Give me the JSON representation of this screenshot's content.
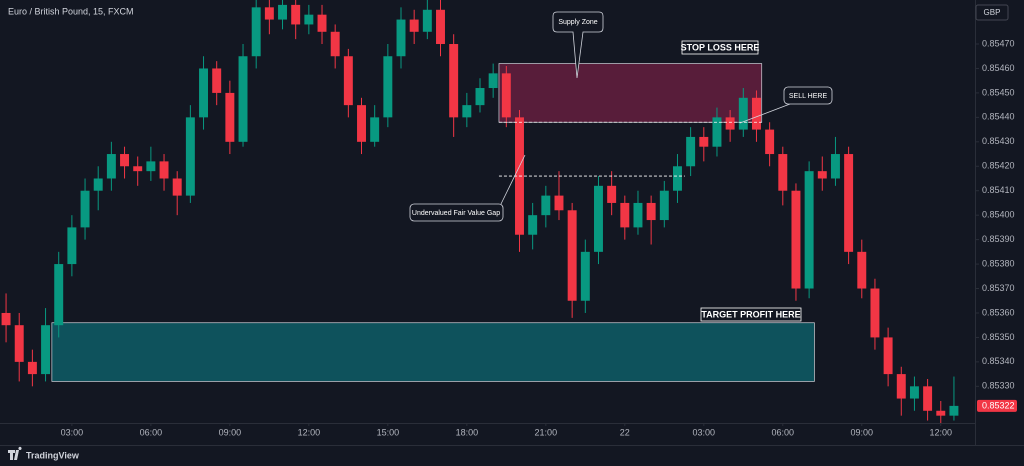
{
  "chart_data": {
    "type": "candlestick",
    "title": "Euro / British Pound, 15, FXCM",
    "currency": "GBP",
    "up_color": "#089981",
    "down_color": "#f23645",
    "x": [
      0.5,
      1,
      1.5,
      2,
      2.5,
      3,
      3.5,
      4,
      4.5,
      5,
      5.5,
      6,
      6.5,
      7,
      7.5,
      8,
      8.5,
      9,
      9.5,
      10,
      10.5,
      11,
      11.5,
      12,
      12.5,
      13,
      13.5,
      14,
      14.5,
      15,
      15.5,
      16,
      16.5,
      17,
      17.5,
      18,
      18.5,
      19,
      19.5,
      20,
      20.5,
      21,
      21.5,
      22,
      22.5,
      23,
      23.5,
      24,
      24.5,
      25,
      25.5,
      26,
      26.5,
      27,
      27.5,
      28,
      28.5,
      29,
      29.5,
      30,
      30.5,
      31,
      31.5,
      32,
      32.5,
      33,
      33.5,
      34,
      34.5,
      35,
      35.5,
      36,
      36.5
    ],
    "open": [
      0.8536,
      0.85355,
      0.8534,
      0.85335,
      0.85355,
      0.8538,
      0.85395,
      0.8541,
      0.85415,
      0.85425,
      0.8542,
      0.85418,
      0.85422,
      0.85415,
      0.85408,
      0.8544,
      0.8546,
      0.8545,
      0.8543,
      0.85465,
      0.85485,
      0.8548,
      0.85486,
      0.85478,
      0.85482,
      0.85475,
      0.85465,
      0.85445,
      0.8543,
      0.8544,
      0.85465,
      0.8548,
      0.85475,
      0.85484,
      0.8547,
      0.8544,
      0.85445,
      0.85452,
      0.85458,
      0.8544,
      0.85392,
      0.854,
      0.85408,
      0.85402,
      0.85365,
      0.85385,
      0.85412,
      0.85405,
      0.85395,
      0.85405,
      0.85398,
      0.8541,
      0.8542,
      0.85432,
      0.85428,
      0.8544,
      0.85435,
      0.85448,
      0.85435,
      0.85425,
      0.8541,
      0.8537,
      0.85418,
      0.85415,
      0.85425,
      0.85385,
      0.8537,
      0.8535,
      0.85335,
      0.85325,
      0.8533,
      0.8532,
      0.85318
    ],
    "high": [
      0.85368,
      0.8536,
      0.85345,
      0.85362,
      0.85385,
      0.854,
      0.85415,
      0.8542,
      0.8543,
      0.85428,
      0.85424,
      0.85428,
      0.85425,
      0.85418,
      0.85445,
      0.85465,
      0.85463,
      0.85455,
      0.8547,
      0.85488,
      0.85488,
      0.85488,
      0.85488,
      0.85486,
      0.85486,
      0.85478,
      0.85468,
      0.85448,
      0.85445,
      0.8547,
      0.85485,
      0.85484,
      0.85488,
      0.85488,
      0.85474,
      0.8545,
      0.85456,
      0.85462,
      0.85461,
      0.85443,
      0.85405,
      0.85412,
      0.85418,
      0.85405,
      0.8539,
      0.85416,
      0.85418,
      0.85408,
      0.8541,
      0.85408,
      0.85414,
      0.85425,
      0.85436,
      0.85436,
      0.85444,
      0.85443,
      0.85452,
      0.85451,
      0.85438,
      0.85428,
      0.85413,
      0.85422,
      0.85424,
      0.85432,
      0.85428,
      0.8539,
      0.85374,
      0.85354,
      0.85338,
      0.85334,
      0.85333,
      0.85324,
      0.85334
    ],
    "low": [
      0.85348,
      0.85332,
      0.8533,
      0.85332,
      0.8535,
      0.85375,
      0.8539,
      0.85402,
      0.8541,
      0.85415,
      0.85412,
      0.85414,
      0.8541,
      0.854,
      0.85405,
      0.85435,
      0.85445,
      0.85425,
      0.85428,
      0.8546,
      0.85474,
      0.85476,
      0.85472,
      0.85474,
      0.8547,
      0.8546,
      0.8544,
      0.85425,
      0.85428,
      0.85436,
      0.8546,
      0.8547,
      0.85472,
      0.85465,
      0.85432,
      0.85436,
      0.85442,
      0.85448,
      0.85436,
      0.85385,
      0.85386,
      0.85395,
      0.85398,
      0.85358,
      0.8536,
      0.8538,
      0.854,
      0.8539,
      0.85392,
      0.85388,
      0.85395,
      0.85405,
      0.85416,
      0.85422,
      0.85424,
      0.8543,
      0.85432,
      0.8543,
      0.8542,
      0.85404,
      0.85365,
      0.85366,
      0.8541,
      0.85412,
      0.8538,
      0.85366,
      0.85345,
      0.8533,
      0.85318,
      0.8532,
      0.85316,
      0.85315,
      0.85316
    ],
    "close": [
      0.85355,
      0.8534,
      0.85335,
      0.85355,
      0.8538,
      0.85395,
      0.8541,
      0.85415,
      0.85425,
      0.8542,
      0.85418,
      0.85422,
      0.85415,
      0.85408,
      0.8544,
      0.8546,
      0.8545,
      0.8543,
      0.85465,
      0.85485,
      0.8548,
      0.85486,
      0.85478,
      0.85482,
      0.85475,
      0.85465,
      0.85445,
      0.8543,
      0.8544,
      0.85465,
      0.8548,
      0.85475,
      0.85484,
      0.8547,
      0.8544,
      0.85445,
      0.85452,
      0.85458,
      0.8544,
      0.85392,
      0.854,
      0.85408,
      0.85402,
      0.85365,
      0.85385,
      0.85412,
      0.85405,
      0.85395,
      0.85405,
      0.85398,
      0.8541,
      0.8542,
      0.85432,
      0.85428,
      0.8544,
      0.85435,
      0.85448,
      0.85435,
      0.85425,
      0.8541,
      0.8537,
      0.85418,
      0.85415,
      0.85425,
      0.85385,
      0.8537,
      0.8535,
      0.85335,
      0.85325,
      0.8533,
      0.8532,
      0.85318,
      0.85322
    ],
    "xlim": [
      0.27,
      37.3
    ],
    "ylim": [
      0.85315,
      0.85488
    ],
    "xticks": [
      {
        "value": 3,
        "label": "03:00"
      },
      {
        "value": 6,
        "label": "06:00"
      },
      {
        "value": 9,
        "label": "09:00"
      },
      {
        "value": 12,
        "label": "12:00"
      },
      {
        "value": 15,
        "label": "15:00"
      },
      {
        "value": 18,
        "label": "18:00"
      },
      {
        "value": 21,
        "label": "21:00"
      },
      {
        "value": 24,
        "label": "22"
      },
      {
        "value": 27,
        "label": "03:00"
      },
      {
        "value": 30,
        "label": "06:00"
      },
      {
        "value": 33,
        "label": "09:00"
      },
      {
        "value": 36,
        "label": "12:00"
      }
    ],
    "yticks": [
      {
        "value": 0.8547,
        "label": "0.85470"
      },
      {
        "value": 0.8546,
        "label": "0.85460"
      },
      {
        "value": 0.8545,
        "label": "0.85450"
      },
      {
        "value": 0.8544,
        "label": "0.85440"
      },
      {
        "value": 0.8543,
        "label": "0.85430"
      },
      {
        "value": 0.8542,
        "label": "0.85420"
      },
      {
        "value": 0.8541,
        "label": "0.85410"
      },
      {
        "value": 0.854,
        "label": "0.85400"
      },
      {
        "value": 0.8539,
        "label": "0.85390"
      },
      {
        "value": 0.8538,
        "label": "0.85380"
      },
      {
        "value": 0.8537,
        "label": "0.85370"
      },
      {
        "value": 0.8536,
        "label": "0.85360"
      },
      {
        "value": 0.8535,
        "label": "0.85350"
      },
      {
        "value": 0.8534,
        "label": "0.85340"
      },
      {
        "value": 0.8533,
        "label": "0.85330"
      }
    ],
    "grid": false,
    "zones": [
      {
        "x0": 19.22,
        "x1": 29.2,
        "y0": 0.85438,
        "y1": 0.85462,
        "color": "#5c1d3c"
      },
      {
        "x0": 2.24,
        "x1": 31.2,
        "y0": 0.85332,
        "y1": 0.85356,
        "color": "#0e5560"
      }
    ],
    "levels": [
      {
        "x0": 19.22,
        "x1": 29.2,
        "y": 0.85438
      },
      {
        "x0": 19.22,
        "x1": 26.28,
        "y": 0.85416
      }
    ],
    "annotations": {
      "supply": "Supply Zone",
      "stop": "STOP LOSS HERE",
      "sell": "SELL HERE",
      "gap": "Undervalued Fair Value Gap",
      "target": "TARGET PROFIT HERE"
    }
  },
  "footer": {
    "brand": "TradingView"
  }
}
